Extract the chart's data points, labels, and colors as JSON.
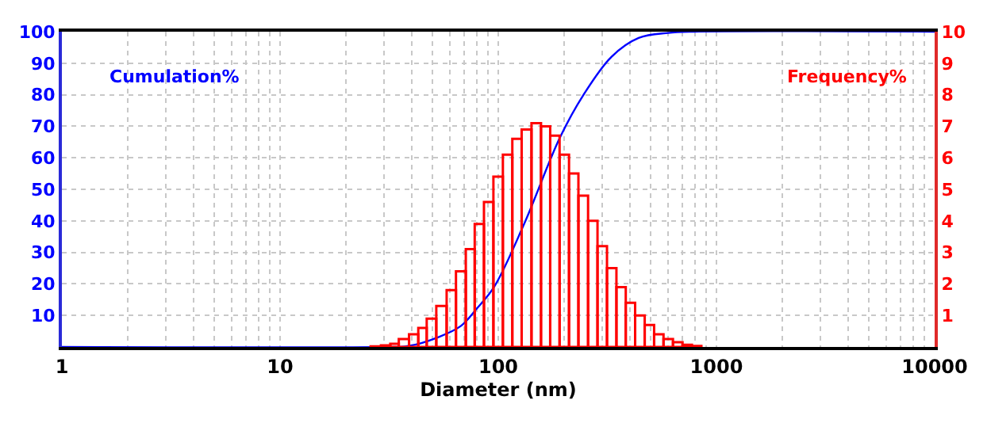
{
  "chart_data": {
    "type": "histogram",
    "xlabel": "Diameter (nm)",
    "ylabel": "Cumulation%",
    "y2label": "Frequency%",
    "log": "x",
    "grid": true,
    "xlim": [
      1,
      10000
    ],
    "xticks": [
      1,
      10,
      100,
      1000,
      10000
    ],
    "ylim": [
      0,
      100
    ],
    "yticks": [
      10,
      20,
      30,
      40,
      50,
      60,
      70,
      80,
      90,
      100
    ],
    "y2lim": [
      0,
      10
    ],
    "y2ticks": [
      1,
      2,
      3,
      4,
      5,
      6,
      7,
      8,
      9,
      10
    ],
    "series": [
      {
        "axis": "y2",
        "color": "#ff0000",
        "bins": [
          26,
          29,
          32,
          35,
          39,
          43,
          47,
          52,
          58,
          64,
          71,
          78,
          86,
          95,
          105,
          116,
          128,
          142,
          157,
          173,
          191,
          211,
          233,
          258,
          285,
          315,
          348,
          384,
          424,
          469,
          518,
          572,
          632,
          699,
          772,
          853
        ],
        "values": [
          0.02,
          0.05,
          0.1,
          0.25,
          0.4,
          0.6,
          0.9,
          1.3,
          1.8,
          2.4,
          3.1,
          3.9,
          4.6,
          5.4,
          6.1,
          6.6,
          6.9,
          7.1,
          7.0,
          6.7,
          6.1,
          5.5,
          4.8,
          4.0,
          3.2,
          2.5,
          1.9,
          1.4,
          1.0,
          0.7,
          0.4,
          0.25,
          0.15,
          0.07,
          0.03
        ]
      },
      {
        "type": "line",
        "color": "#0000ff",
        "x": [
          1,
          30,
          38.8,
          53.5,
          67.5,
          79.6,
          96,
          131,
          192,
          246,
          330,
          440,
          600,
          784,
          10000
        ],
        "values": [
          0,
          0,
          0.3,
          3.2,
          6.7,
          12.1,
          19.2,
          38.8,
          66.5,
          80,
          92,
          98,
          99.6,
          100,
          100
        ]
      }
    ]
  }
}
